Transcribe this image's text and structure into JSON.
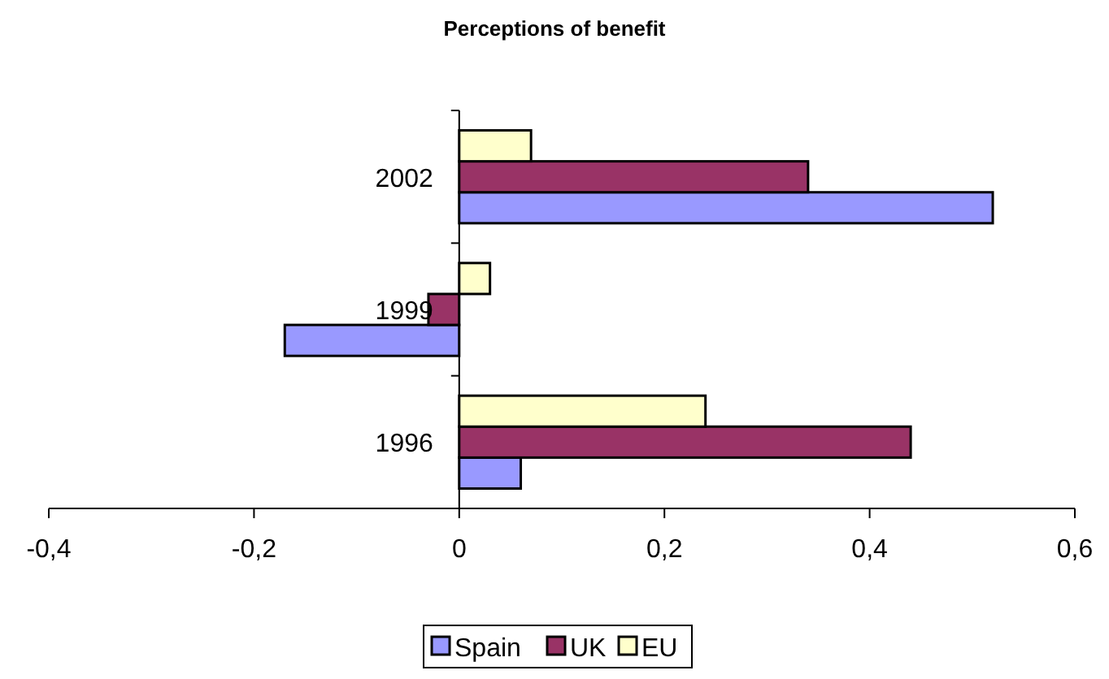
{
  "chart_data": {
    "type": "bar",
    "orientation": "horizontal",
    "title": "Perceptions of benefit",
    "categories": [
      "2002",
      "1999",
      "1996"
    ],
    "series": [
      {
        "name": "Spain",
        "color": "#9999ff",
        "values": [
          0.52,
          -0.17,
          0.06
        ]
      },
      {
        "name": "UK",
        "color": "#993366",
        "values": [
          0.34,
          -0.03,
          0.44
        ]
      },
      {
        "name": "EU",
        "color": "#ffffcc",
        "values": [
          0.07,
          0.03,
          0.24
        ]
      }
    ],
    "xlim": [
      -0.4,
      0.6
    ],
    "xticks": [
      {
        "value": -0.4,
        "label": "-0,4"
      },
      {
        "value": -0.2,
        "label": "-0,2"
      },
      {
        "value": 0,
        "label": "0"
      },
      {
        "value": 0.2,
        "label": "0,2"
      },
      {
        "value": 0.4,
        "label": "0,4"
      },
      {
        "value": 0.6,
        "label": "0,6"
      }
    ],
    "grid": false,
    "legend": "bottom"
  }
}
